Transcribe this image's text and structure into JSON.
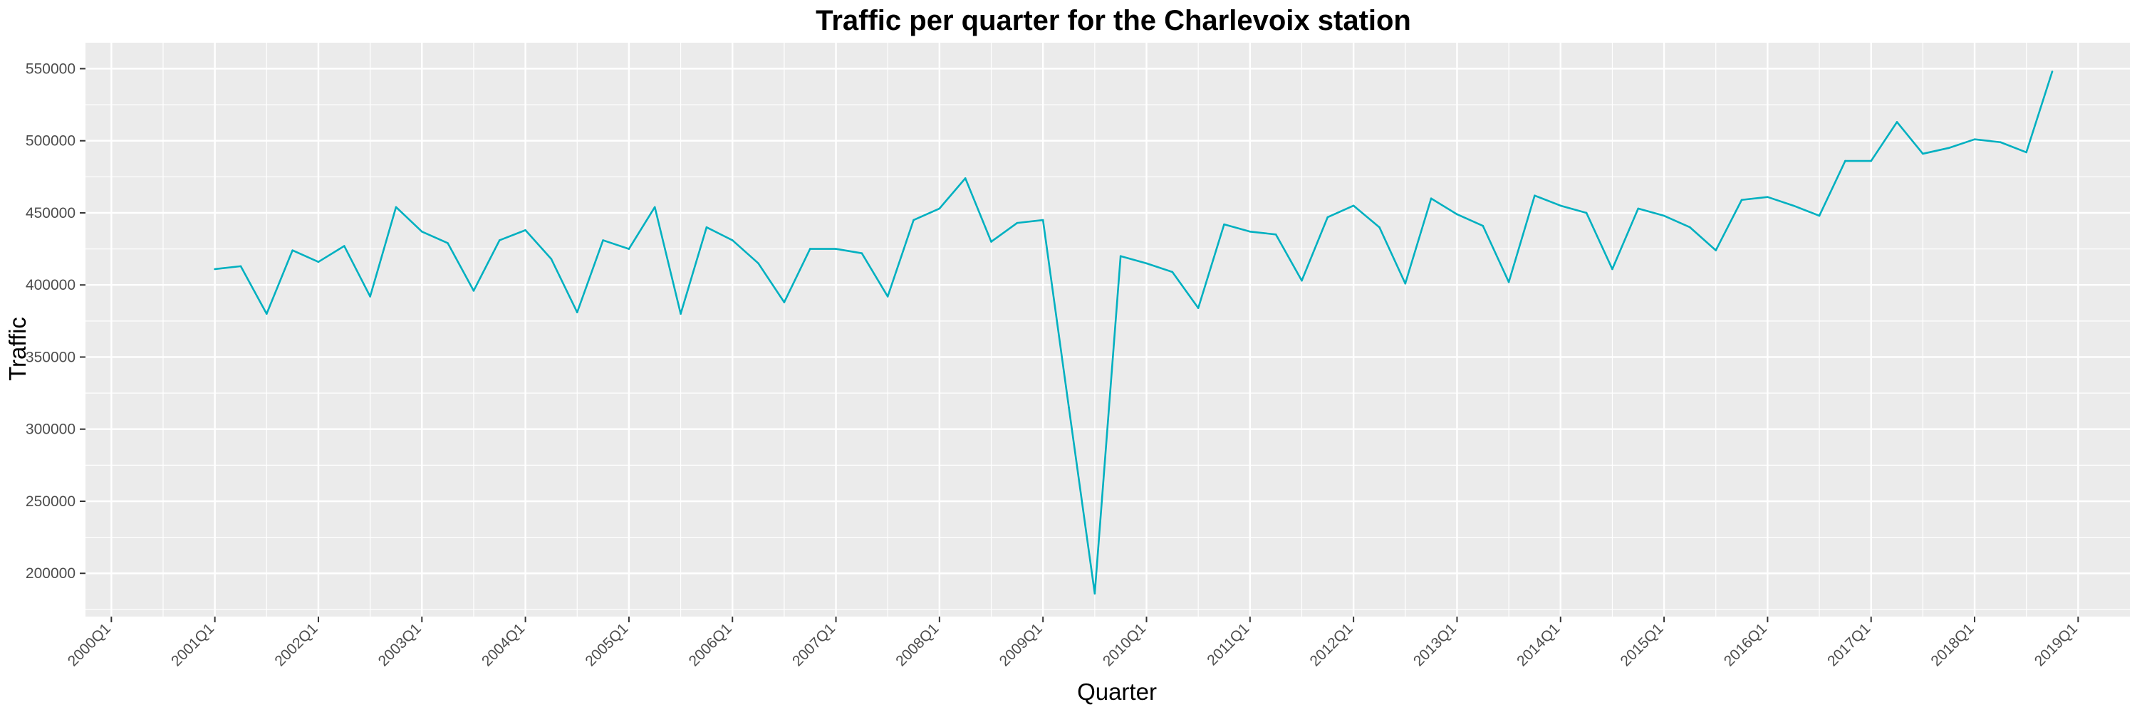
{
  "chart_data": {
    "type": "line",
    "title": "Traffic per quarter for the Charlevoix station",
    "xlabel": "Quarter",
    "ylabel": "Traffic",
    "x_tick_labels": [
      "2000Q1",
      "2001Q1",
      "2002Q1",
      "2003Q1",
      "2004Q1",
      "2005Q1",
      "2006Q1",
      "2007Q1",
      "2008Q1",
      "2009Q1",
      "2010Q1",
      "2011Q1",
      "2012Q1",
      "2013Q1",
      "2014Q1",
      "2015Q1",
      "2016Q1",
      "2017Q1",
      "2018Q1",
      "2019Q1"
    ],
    "y_ticks": [
      200000,
      250000,
      300000,
      350000,
      400000,
      450000,
      500000,
      550000
    ],
    "y_tick_labels": [
      "200000",
      "250000",
      "300000",
      "350000",
      "400000",
      "450000",
      "500000",
      "550000"
    ],
    "xlim": [
      "1999Q4",
      "2019Q3"
    ],
    "ylim": [
      170000,
      568000
    ],
    "grid": true,
    "line_color": "#00b0c0",
    "panel_background": "#ebebeb",
    "grid_color": "#ffffff",
    "series": [
      {
        "x": [
          "2001Q1",
          "2001Q2",
          "2001Q3",
          "2001Q4",
          "2002Q1",
          "2002Q2",
          "2002Q3",
          "2002Q4",
          "2003Q1",
          "2003Q2",
          "2003Q3",
          "2003Q4",
          "2004Q1",
          "2004Q2",
          "2004Q3",
          "2004Q4",
          "2005Q1",
          "2005Q2",
          "2005Q3",
          "2005Q4",
          "2006Q1",
          "2006Q2",
          "2006Q3",
          "2006Q4",
          "2007Q1",
          "2007Q2",
          "2007Q3",
          "2007Q4",
          "2008Q1",
          "2008Q2",
          "2008Q3",
          "2008Q4",
          "2009Q1",
          "2009Q2",
          "2009Q3",
          "2009Q4",
          "2010Q1",
          "2010Q2",
          "2010Q3",
          "2010Q4",
          "2011Q1",
          "2011Q2",
          "2011Q3",
          "2011Q4",
          "2012Q1",
          "2012Q2",
          "2012Q3",
          "2012Q4",
          "2013Q1",
          "2013Q2",
          "2013Q3",
          "2013Q4",
          "2014Q1",
          "2014Q2",
          "2014Q3",
          "2014Q4",
          "2015Q1",
          "2015Q2",
          "2015Q3",
          "2015Q4",
          "2016Q1",
          "2016Q2",
          "2016Q3",
          "2016Q4",
          "2017Q1",
          "2017Q2",
          "2017Q3",
          "2017Q4",
          "2018Q1",
          "2018Q2",
          "2018Q3",
          "2018Q4"
        ],
        "values": [
          411000,
          413000,
          380000,
          424000,
          416000,
          427000,
          392000,
          454000,
          437000,
          429000,
          396000,
          431000,
          438000,
          418000,
          381000,
          431000,
          425000,
          454000,
          380000,
          440000,
          431000,
          415000,
          388000,
          425000,
          425000,
          422000,
          392000,
          445000,
          453000,
          474000,
          430000,
          443000,
          445000,
          315000,
          186000,
          420000,
          415000,
          409000,
          384000,
          442000,
          437000,
          435000,
          403000,
          447000,
          455000,
          440000,
          401000,
          460000,
          449000,
          441000,
          402000,
          462000,
          455000,
          450000,
          411000,
          453000,
          448000,
          440000,
          424000,
          459000,
          461000,
          455000,
          448000,
          486000,
          486000,
          513000,
          491000,
          495000,
          501000,
          499000,
          492000,
          548000
        ]
      }
    ]
  }
}
